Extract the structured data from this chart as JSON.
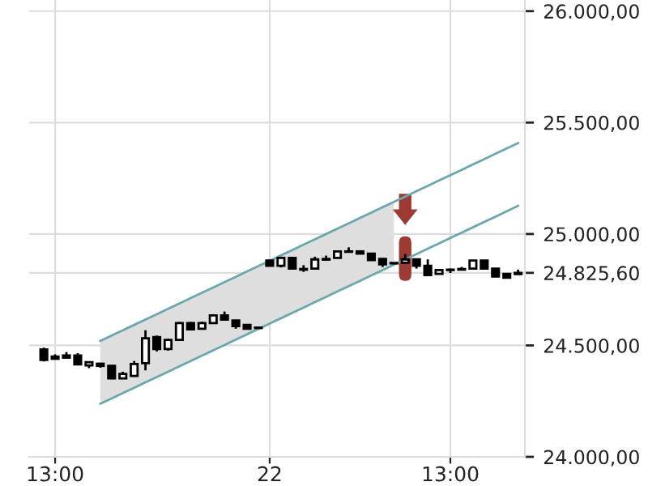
{
  "chart_data": {
    "type": "candlestick",
    "categories": [
      null,
      "13:00",
      null,
      null,
      null,
      null,
      null,
      null,
      null,
      null,
      null,
      null,
      null,
      null,
      null,
      null,
      null,
      null,
      null,
      null,
      "22",
      null,
      null,
      null,
      null,
      null,
      null,
      null,
      null,
      null,
      null,
      null,
      null,
      null,
      null,
      null,
      "13:00",
      null,
      null,
      null,
      null,
      null,
      null
    ],
    "ohlc": [
      [
        24482,
        24490,
        24428,
        24435
      ],
      [
        24450,
        24460,
        24438,
        24440
      ],
      [
        24455,
        24470,
        24443,
        24445
      ],
      [
        24455,
        24465,
        24412,
        24415
      ],
      [
        24410,
        24427,
        24398,
        24425
      ],
      [
        24418,
        24422,
        24400,
        24408
      ],
      [
        24408,
        24412,
        24348,
        24352
      ],
      [
        24352,
        24382,
        24350,
        24372
      ],
      [
        24363,
        24430,
        24360,
        24417
      ],
      [
        24420,
        24568,
        24388,
        24532
      ],
      [
        24537,
        24544,
        24473,
        24484
      ],
      [
        24484,
        24530,
        24477,
        24525
      ],
      [
        24525,
        24605,
        24522,
        24600
      ],
      [
        24600,
        24605,
        24568,
        24572
      ],
      [
        24575,
        24607,
        24572,
        24600
      ],
      [
        24600,
        24640,
        24598,
        24635
      ],
      [
        24635,
        24652,
        24612,
        24616
      ],
      [
        24612,
        24615,
        24575,
        24587
      ],
      [
        24592,
        24596,
        24572,
        24575
      ],
      [
        24580,
        24582,
        24576,
        24578
      ],
      [
        24881,
        24885,
        24855,
        24857
      ],
      [
        24857,
        24896,
        24850,
        24893
      ],
      [
        24893,
        24896,
        24843,
        24845
      ],
      [
        24840,
        24860,
        24830,
        24843
      ],
      [
        24845,
        24898,
        24842,
        24886
      ],
      [
        24885,
        24903,
        24880,
        24888
      ],
      [
        24893,
        24925,
        24890,
        24922
      ],
      [
        24922,
        24940,
        24918,
        24920
      ],
      [
        24922,
        24924,
        24910,
        24912
      ],
      [
        24912,
        24915,
        24880,
        24883
      ],
      [
        24888,
        24890,
        24852,
        24864
      ],
      [
        24870,
        24872,
        24866,
        24868
      ],
      [
        24871,
        24910,
        24868,
        24886
      ],
      [
        24886,
        24888,
        24845,
        24857
      ],
      [
        24857,
        24886,
        24814,
        24816
      ],
      [
        24821,
        24840,
        24818,
        24838
      ],
      [
        24838,
        24845,
        24825,
        24840
      ],
      [
        24840,
        24852,
        24840,
        24843
      ],
      [
        24845,
        24883,
        24843,
        24881
      ],
      [
        24881,
        24883,
        24843,
        24845
      ],
      [
        24845,
        24847,
        24806,
        24809
      ],
      [
        24821,
        24823,
        24800,
        24804
      ],
      [
        24820,
        24840,
        24818,
        24825.6
      ]
    ],
    "series": [
      {
        "type": "line",
        "color": "#6aa8ac",
        "values": [
          null,
          null,
          null,
          null,
          null,
          24520,
          24544,
          24568,
          24592,
          24616,
          24640,
          24664,
          24688,
          24712,
          24736,
          24760,
          24784,
          24808,
          24832,
          24856,
          24880,
          24904,
          24928,
          24952,
          24976,
          25000,
          25024,
          25048,
          25072,
          25096,
          25120,
          25144,
          25168,
          25192,
          25216,
          25240,
          25264,
          25288,
          25312,
          25336,
          25360,
          25384,
          25408
        ]
      },
      {
        "type": "line",
        "color": "#6aa8ac",
        "values": [
          null,
          null,
          null,
          null,
          null,
          24238,
          24262,
          24286,
          24310,
          24334,
          24358,
          24382,
          24406,
          24430,
          24454,
          24478,
          24502,
          24526,
          24550,
          24574,
          24598,
          24622,
          24646,
          24670,
          24694,
          24718,
          24742,
          24766,
          24790,
          24814,
          24838,
          24862,
          24886,
          24910,
          24934,
          24958,
          24982,
          25006,
          25030,
          25054,
          25078,
          25102,
          25126
        ],
        "lower": [
          null,
          null,
          null,
          null,
          null,
          24238,
          24262,
          24286,
          24310,
          24334,
          24358,
          24382,
          24406,
          24430,
          24454,
          24478,
          24502,
          24526,
          24550,
          24574,
          24598,
          24622,
          24646,
          24670,
          24694,
          24718,
          24742,
          24766,
          24790,
          24814,
          24838,
          24862,
          null,
          null,
          null,
          null,
          null,
          null,
          null,
          null,
          null,
          null,
          null
        ],
        "upper": [
          null,
          null,
          null,
          null,
          null,
          24520,
          24544,
          24568,
          24592,
          24616,
          24640,
          24664,
          24688,
          24712,
          24736,
          24760,
          24784,
          24808,
          24832,
          24856,
          24880,
          24904,
          24928,
          24952,
          24976,
          25000,
          25024,
          25048,
          25072,
          25096,
          25120,
          25144,
          null,
          null,
          null,
          null,
          null,
          null,
          null,
          null,
          null,
          null,
          null
        ]
      }
    ],
    "ylim": [
      24000,
      26050
    ],
    "yticks": [
      {
        "value": 24000,
        "label": "24.000,00"
      },
      {
        "value": 24500,
        "label": "24.500,00"
      },
      {
        "value": 24825.6,
        "label": "24.825,60"
      },
      {
        "value": 25000,
        "label": "25.000,00"
      },
      {
        "value": 25500,
        "label": "25.500,00"
      },
      {
        "value": 26000,
        "label": "26.000,00"
      }
    ],
    "grid": true
  }
}
